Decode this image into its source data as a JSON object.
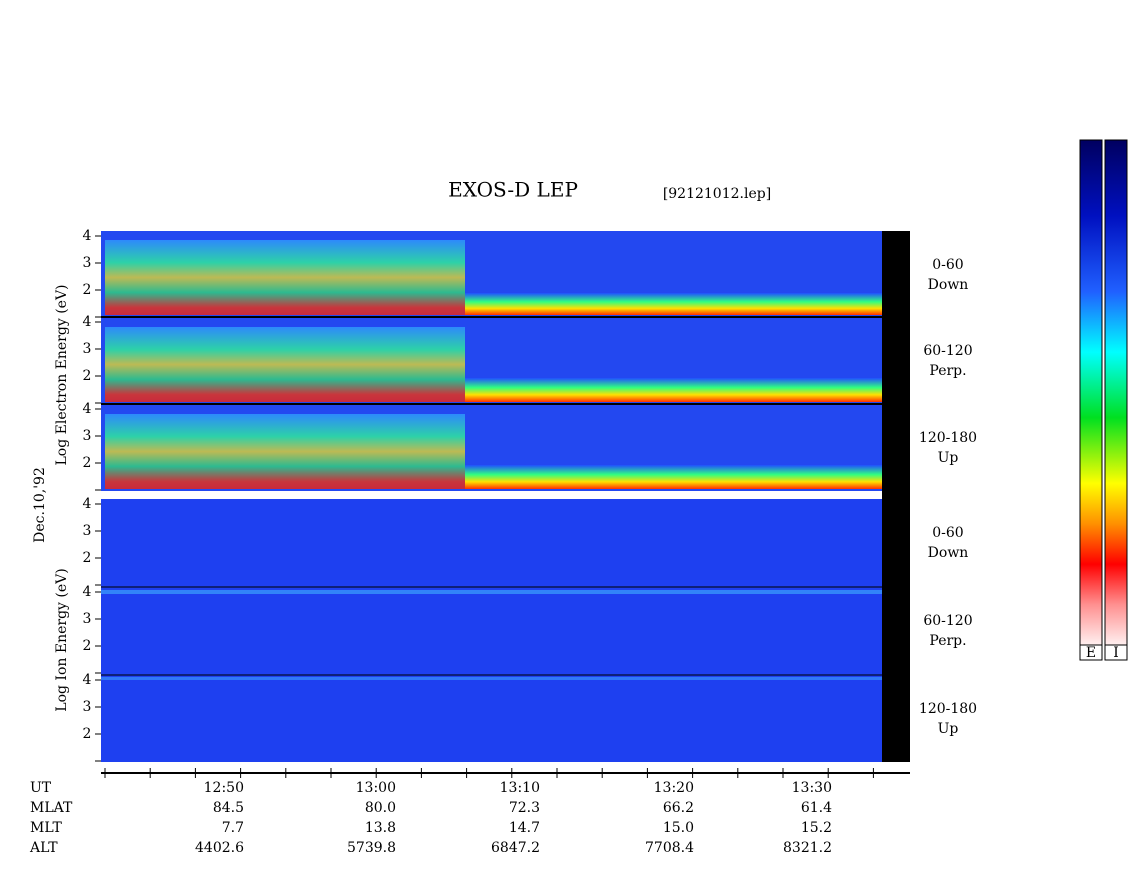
{
  "header": {
    "title": "EXOS-D LEP",
    "file": "[92121012.lep]"
  },
  "panels": [
    {
      "ticks": [
        "4",
        "3",
        "2"
      ],
      "label": "0-60",
      "sublabel": "Down"
    },
    {
      "ticks": [
        "4",
        "3",
        "2"
      ],
      "label": "60-120",
      "sublabel": "Perp."
    },
    {
      "ticks": [
        "4",
        "3",
        "2"
      ],
      "label": "120-180",
      "sublabel": "Up"
    },
    {
      "ticks": [
        "4",
        "3",
        "2"
      ],
      "label": "0-60",
      "sublabel": "Down"
    },
    {
      "ticks": [
        "4",
        "3",
        "2"
      ],
      "label": "60-120",
      "sublabel": "Perp."
    },
    {
      "ticks": [
        "4",
        "3",
        "2"
      ],
      "label": "120-180",
      "sublabel": "Up"
    }
  ],
  "axis_labels": {
    "electron": "Log Electron Energy (eV)",
    "ion": "Log Ion Energy (eV)",
    "date": "Dec.10,'92"
  },
  "table": {
    "row_labels": [
      "UT",
      "MLAT",
      "MLT",
      "ALT"
    ],
    "columns": [
      [
        "12:50",
        "84.5",
        "7.7",
        "4402.6"
      ],
      [
        "13:00",
        "80.0",
        "13.8",
        "5739.8"
      ],
      [
        "13:10",
        "72.3",
        "14.7",
        "6847.2"
      ],
      [
        "13:20",
        "66.2",
        "15.0",
        "7708.4"
      ],
      [
        "13:30",
        "61.4",
        "15.2",
        "8321.2"
      ]
    ]
  },
  "colorbar": {
    "labels": [
      "E",
      "I"
    ]
  }
}
